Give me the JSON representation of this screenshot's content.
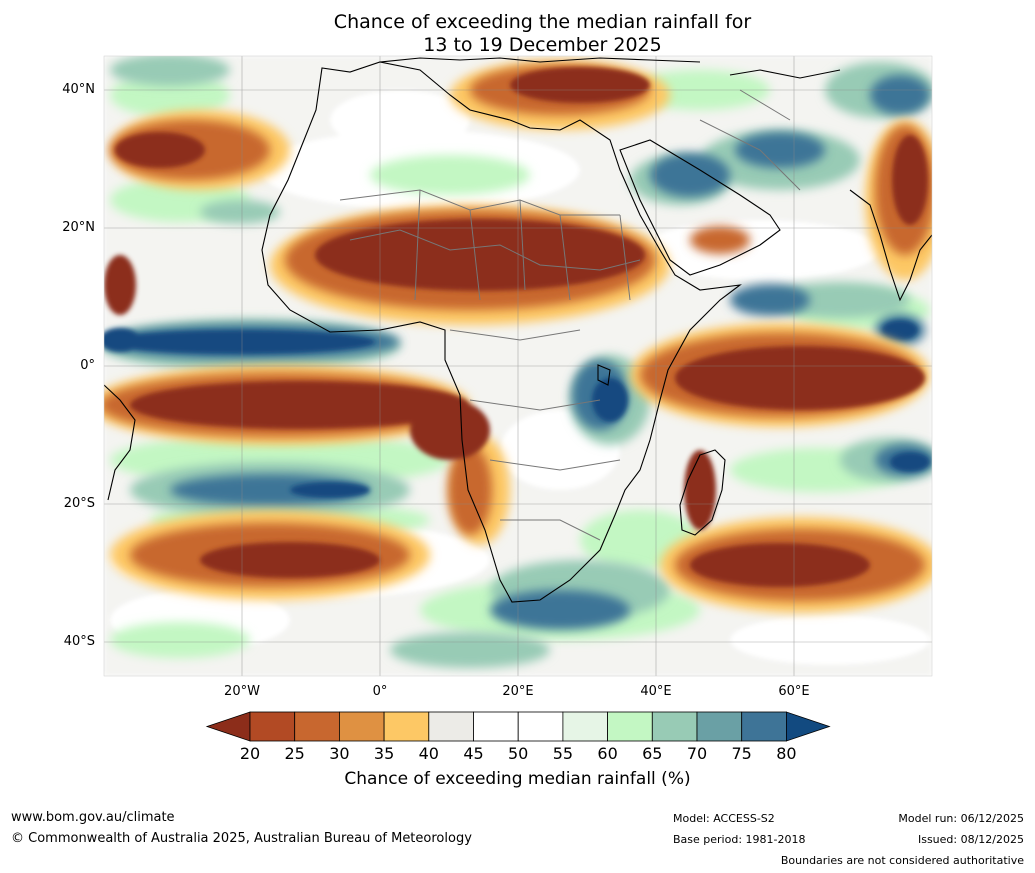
{
  "title": {
    "line1": "Chance of exceeding the median rainfall for",
    "line2": "13 to 19 December 2025"
  },
  "map": {
    "lat_labels": [
      "40°N",
      "20°N",
      "0°",
      "20°S",
      "40°S"
    ],
    "lon_labels": [
      "20°W",
      "0°",
      "20°E",
      "40°E",
      "60°E"
    ],
    "lat_values": [
      40,
      20,
      0,
      -20,
      -40
    ],
    "lon_values": [
      -20,
      0,
      20,
      40,
      60
    ],
    "extent": {
      "lon_min": -40,
      "lon_max": 80,
      "lat_min": -45,
      "lat_max": 45
    },
    "colors": {
      "dry_strong": "#8c2d1a",
      "dry": "#b24a24",
      "dry_mid": "#c8672f",
      "dry_light": "#df9142",
      "dry_pale": "#fdc865",
      "neutral": "#ecebe7",
      "white": "#ffffff",
      "wet_pale": "#e6f5e6",
      "wet_light": "#c3f7c3",
      "wet": "#98cbb5",
      "wet_mid": "#6aa0a5",
      "wet_strong": "#3e7497",
      "wet_max": "#124a80"
    }
  },
  "colorbar": {
    "ticks": [
      "20",
      "25",
      "30",
      "35",
      "40",
      "45",
      "50",
      "55",
      "60",
      "65",
      "70",
      "75",
      "80"
    ],
    "colors": [
      "#8c2d1a",
      "#b24a24",
      "#c8672f",
      "#df9142",
      "#fdc865",
      "#ecebe7",
      "#ffffff",
      "#ffffff",
      "#e6f5e6",
      "#c3f7c3",
      "#98cbb5",
      "#6aa0a5",
      "#3e7497",
      "#124a80"
    ],
    "label": "Chance of exceeding median rainfall (%)"
  },
  "footer": {
    "url": "www.bom.gov.au/climate",
    "copyright": "© Commonwealth of Australia 2025, Australian Bureau of Meteorology",
    "model": "Model: ACCESS-S2",
    "base_period": "Base period: 1981-2018",
    "model_run": "Model run: 06/12/2025",
    "issued": "Issued: 08/12/2025",
    "disclaimer": "Boundaries are not considered authoritative"
  }
}
